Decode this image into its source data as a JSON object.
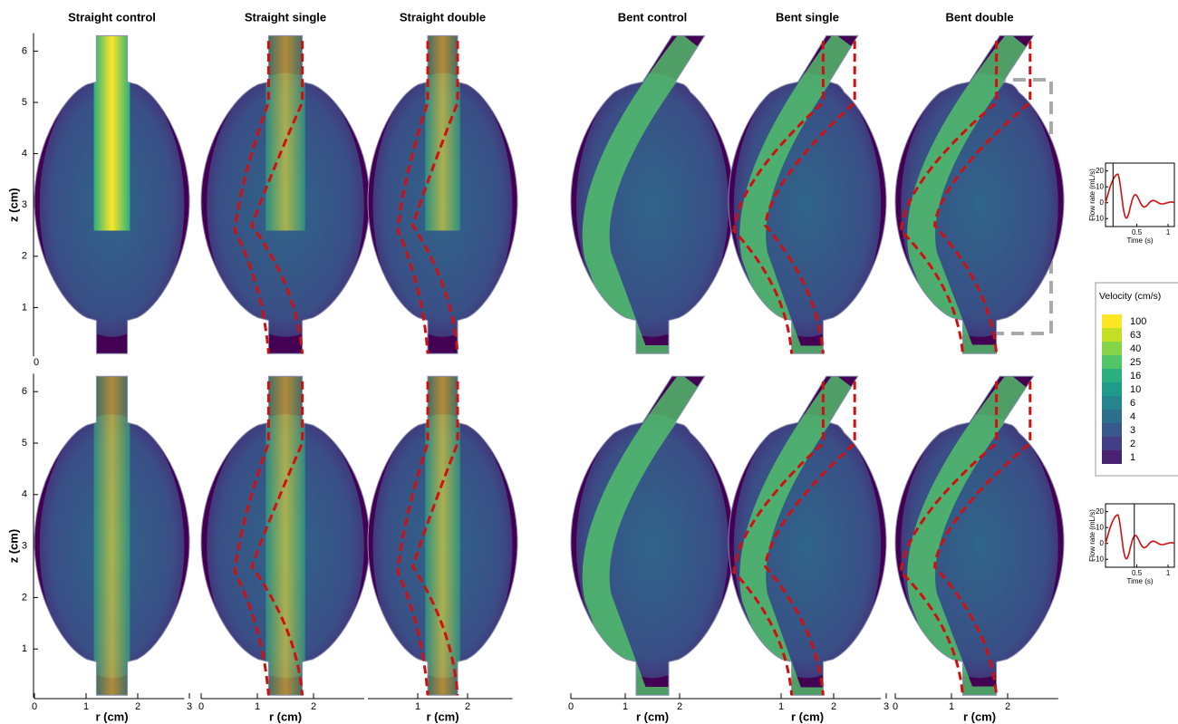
{
  "panel_titles": [
    "Straight control",
    "Straight single",
    "Straight double",
    "Bent control",
    "Bent single",
    "Bent double"
  ],
  "y_axis": {
    "label": "z (cm)",
    "ticks": [
      1,
      2,
      3,
      4,
      5,
      6
    ],
    "origin_label": "0"
  },
  "x_axis": {
    "label": "r (cm)",
    "groups": [
      [
        0,
        1,
        2,
        3
      ],
      [
        0,
        1,
        2
      ],
      [
        1,
        2
      ],
      [
        0,
        1,
        2
      ],
      [
        1,
        2,
        3
      ],
      [
        0,
        1,
        2
      ]
    ]
  },
  "legend": {
    "title": "Velocity (cm/s)",
    "levels": [
      100,
      63,
      40,
      25,
      16,
      10,
      6,
      4,
      3,
      2,
      1
    ],
    "colors": [
      "#fde725",
      "#c2df23",
      "#86d549",
      "#52c569",
      "#2ab07f",
      "#1e9b8a",
      "#25858e",
      "#2d708e",
      "#38588c",
      "#433e85",
      "#482173"
    ]
  },
  "insets": {
    "y_label": "Flow rate (mL/s)",
    "x_label": "Time (s)",
    "yticks": [
      20,
      10,
      0,
      -10
    ],
    "xticks": [
      0.5,
      1
    ]
  }
}
